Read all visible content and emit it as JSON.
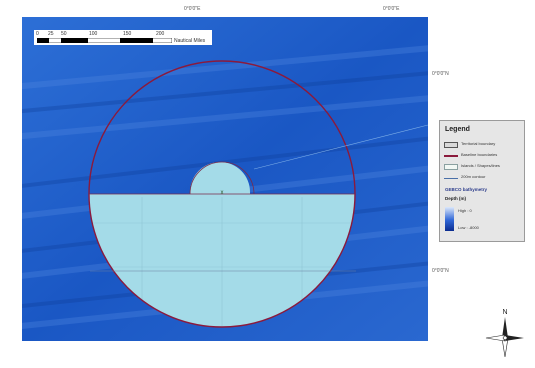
{
  "map": {
    "top_coords": [
      "0°0'0\"E",
      "0°0'0\"E"
    ],
    "right_coords": [
      "0°0'0\"N",
      "0°0'0\"N"
    ],
    "scalebar": {
      "ticks": [
        "0",
        "25",
        "50",
        "100",
        "150",
        "200"
      ],
      "unit": "Nautical Miles"
    },
    "marker": "x",
    "colors": {
      "ocean": "#1c5cc6",
      "shelf": "#a4dbe8",
      "territorial_boundary": "#8b1a3c",
      "baseline": "#7a2a4a"
    }
  },
  "legend": {
    "title": "Legend",
    "items": [
      {
        "label": "Territorial boundary",
        "symbol": "box"
      },
      {
        "label": "Baseline boundaries",
        "symbol": "line"
      },
      {
        "label": "Islands / Shapes/lines",
        "symbol": "fill"
      },
      {
        "label": "200m contour",
        "symbol": "thin-line"
      }
    ],
    "bathymetry_title": "GEBCO bathymetry",
    "depth_label": "Depth (m)",
    "high_label": "High : 0",
    "low_label": "Low : -8000"
  },
  "north": {
    "label": "N"
  }
}
